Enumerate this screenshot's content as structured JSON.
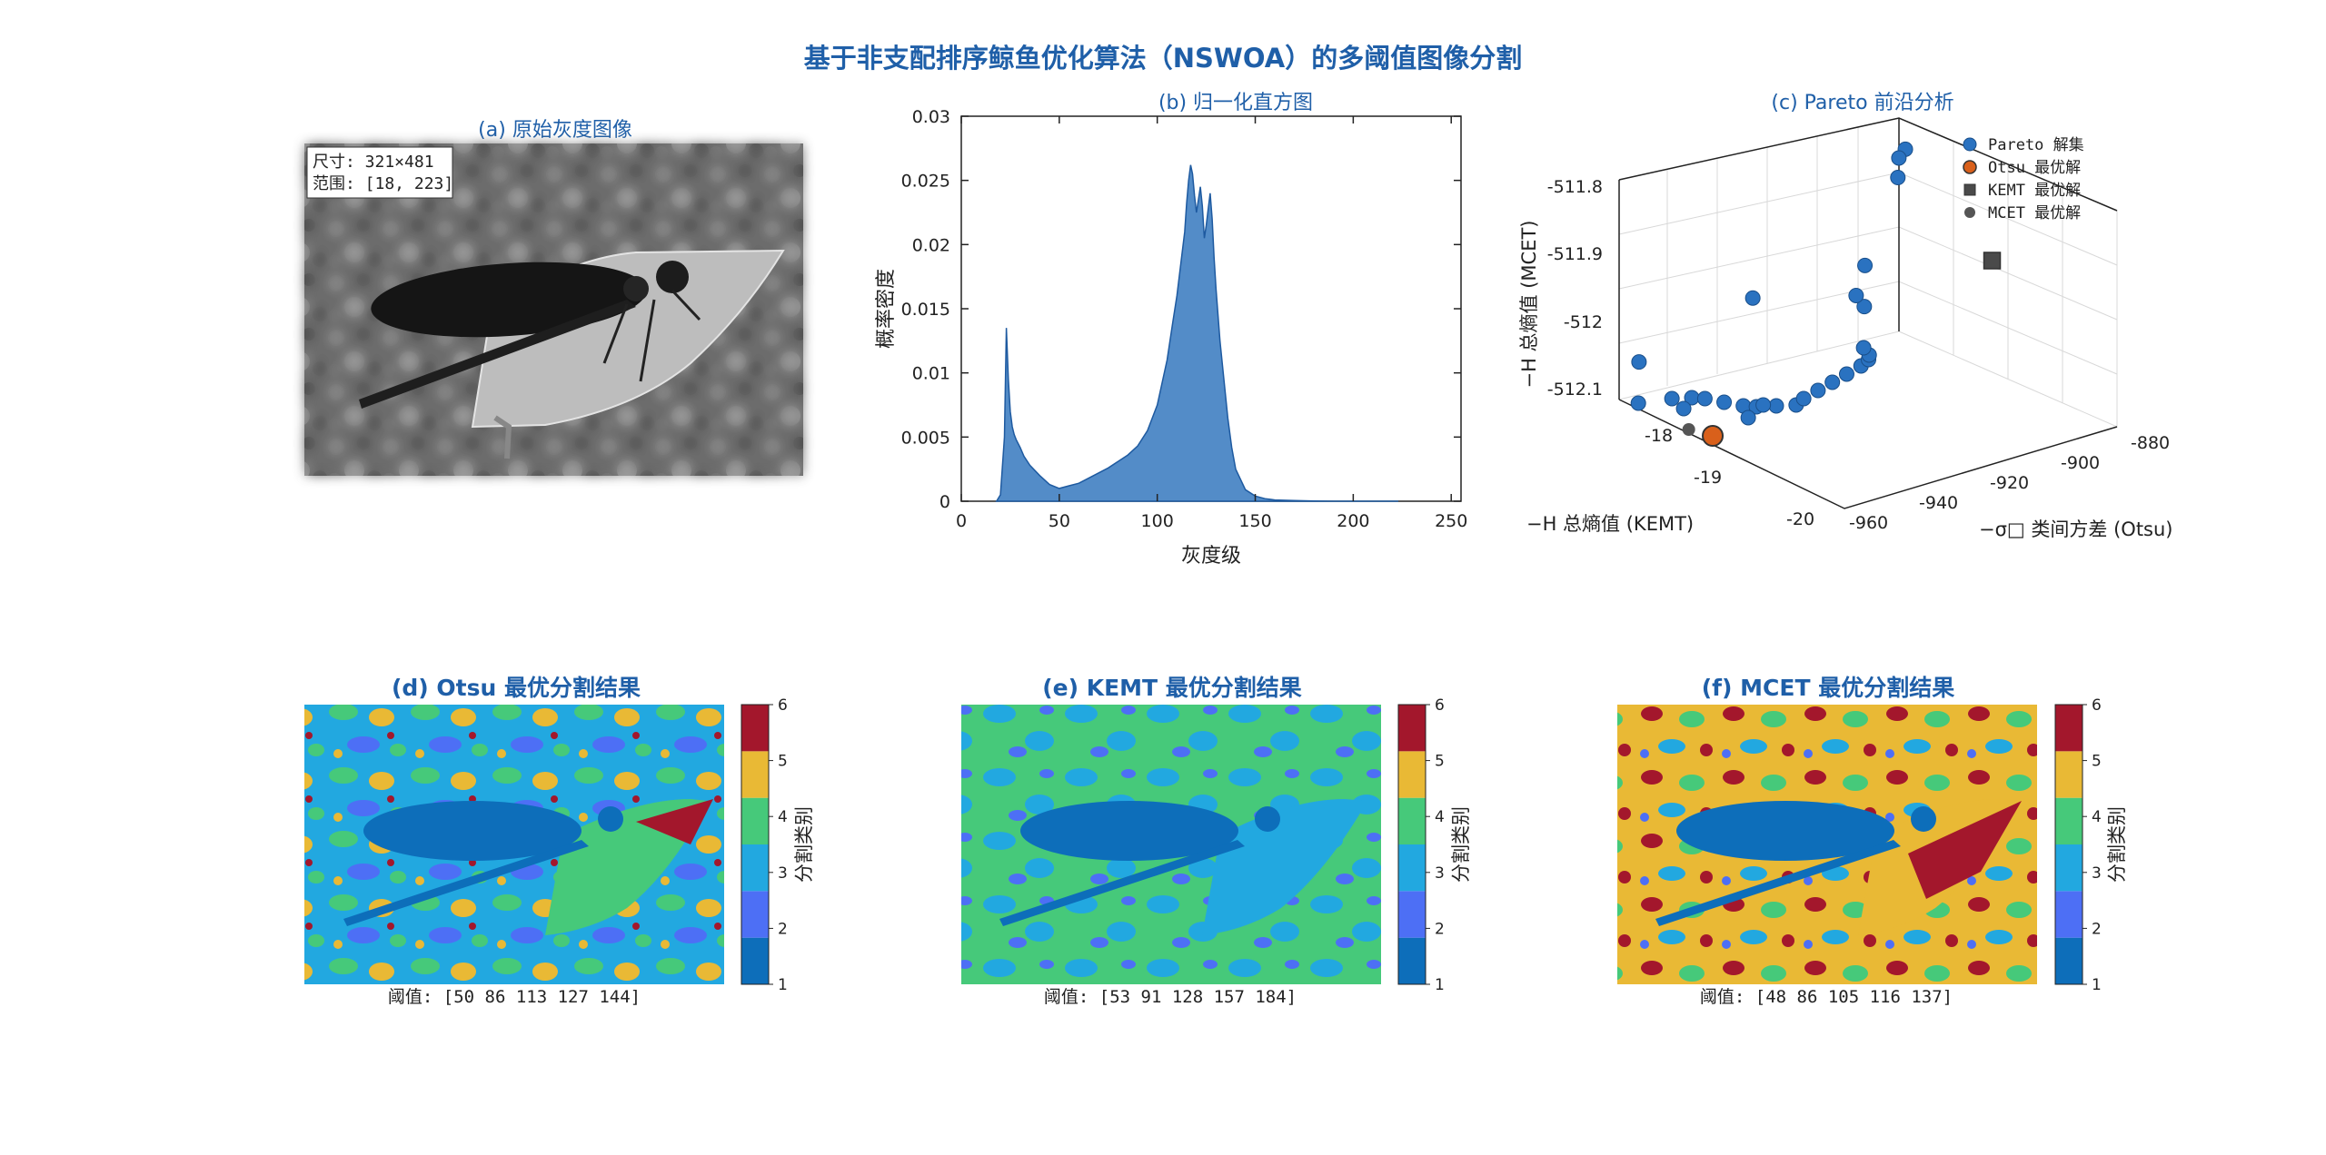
{
  "figure": {
    "title": "基于非支配排序鲸鱼优化算法（NSWOA）的多阈值图像分割"
  },
  "colors": {
    "title_blue": "#1f5fa8",
    "hist_fill": "#4a86c5",
    "pareto_point": "#2a72c0",
    "otsu_marker": "#d9601b",
    "kemt_marker": "#4a4a4a",
    "mcet_marker": "#555555",
    "classes": [
      "#0d6eba",
      "#4d6ff5",
      "#22a8e0",
      "#46c97a",
      "#e9b935",
      "#a3172c"
    ]
  },
  "panel_a": {
    "title": "(a) 原始灰度图像",
    "info_size": "尺寸: 321×481",
    "info_range": "范围: [18, 223]"
  },
  "panel_b": {
    "title": "(b) 归一化直方图",
    "xlabel": "灰度级",
    "ylabel": "概率密度"
  },
  "panel_c": {
    "title": "(c) Pareto 前沿分析",
    "xlabel": "−σ□ 类间方差 (Otsu)",
    "ylabel": "−H 总熵值 (KEMT)",
    "zlabel": "−H 总熵值 (MCET)",
    "x_ticks": [
      "-960",
      "-940",
      "-920",
      "-900",
      "-880"
    ],
    "y_ticks": [
      "-18",
      "-19",
      "-20"
    ],
    "z_ticks": [
      "-511.8",
      "-511.9",
      "-512",
      "-512.1"
    ],
    "legend": [
      "Pareto 解集",
      "Otsu 最优解",
      "KEMT 最优解",
      "MCET 最优解"
    ]
  },
  "panel_d": {
    "title": "(d) Otsu 最优分割结果",
    "caption": "阈值: [50 86 113 127 144]",
    "cbar_label": "分割类别"
  },
  "panel_e": {
    "title": "(e) KEMT 最优分割结果",
    "caption": "阈值: [53 91 128 157 184]",
    "cbar_label": "分割类别"
  },
  "panel_f": {
    "title": "(f) MCET 最优分割结果",
    "caption": "阈值: [48 86 105 116 137]",
    "cbar_label": "分割类别"
  },
  "colorbar_ticks": [
    "1",
    "2",
    "3",
    "4",
    "5",
    "6"
  ],
  "chart_data": [
    {
      "type": "area",
      "title": "(b) 归一化直方图",
      "xlabel": "灰度级",
      "ylabel": "概率密度",
      "xlim": [
        0,
        255
      ],
      "ylim": [
        0,
        0.03
      ],
      "x_ticks": [
        0,
        50,
        100,
        150,
        200,
        250
      ],
      "y_ticks": [
        0,
        0.005,
        0.01,
        0.015,
        0.02,
        0.025,
        0.03
      ],
      "x": [
        18,
        20,
        22,
        23,
        24,
        25,
        26,
        27,
        28,
        30,
        32,
        35,
        40,
        45,
        50,
        55,
        60,
        65,
        70,
        75,
        80,
        85,
        90,
        95,
        100,
        105,
        108,
        110,
        112,
        114,
        115,
        116,
        117,
        118,
        119,
        120,
        121,
        122,
        123,
        124,
        125,
        126,
        127,
        128,
        129,
        130,
        132,
        134,
        136,
        138,
        140,
        145,
        150,
        155,
        160,
        170,
        180,
        190,
        200,
        223
      ],
      "values": [
        0,
        0.0005,
        0.005,
        0.0135,
        0.0095,
        0.007,
        0.0058,
        0.0052,
        0.0048,
        0.0042,
        0.0035,
        0.0028,
        0.002,
        0.0013,
        0.001,
        0.0012,
        0.0014,
        0.0018,
        0.0022,
        0.0026,
        0.0031,
        0.0036,
        0.0043,
        0.0055,
        0.0075,
        0.011,
        0.014,
        0.016,
        0.0185,
        0.021,
        0.0232,
        0.025,
        0.0262,
        0.0255,
        0.0238,
        0.0225,
        0.0235,
        0.0245,
        0.023,
        0.0205,
        0.0215,
        0.0228,
        0.024,
        0.022,
        0.019,
        0.0165,
        0.0125,
        0.0095,
        0.0065,
        0.0042,
        0.0025,
        0.0009,
        0.0004,
        0.0002,
        0.0001,
        5e-05,
        2e-05,
        0,
        0,
        0
      ]
    },
    {
      "type": "scatter",
      "title": "(c) Pareto 前沿分析",
      "xlabel": "−σ□ 类间方差 (Otsu)",
      "ylabel": "−H 总熵值 (KEMT)",
      "zlabel": "−H 总熵值 (MCET)",
      "xlim": [
        -960,
        -880
      ],
      "ylim": [
        -20,
        -18
      ],
      "zlim": [
        -512.1,
        -511.8
      ],
      "series": [
        {
          "name": "Pareto 解集",
          "points": [
            [
              -958,
              -18.2,
              -512.1
            ],
            [
              -950,
              -18.3,
              -512.1
            ],
            [
              -946,
              -18.4,
              -512.1
            ],
            [
              -944,
              -18.5,
              -512.1
            ],
            [
              -942,
              -18.7,
              -512.1
            ],
            [
              -940,
              -18.9,
              -512.1
            ],
            [
              -938,
              -19.0,
              -512.1
            ],
            [
              -934,
              -19.1,
              -512.1
            ],
            [
              -930,
              -19.2,
              -512.1
            ],
            [
              -926,
              -19.1,
              -512.1
            ],
            [
              -920,
              -19.0,
              -512.1
            ],
            [
              -914,
              -18.9,
              -512.1
            ],
            [
              -908,
              -18.8,
              -512.1
            ],
            [
              -902,
              -18.7,
              -512.1
            ],
            [
              -898,
              -18.6,
              -512.1
            ],
            [
              -896,
              -18.5,
              -512.1
            ],
            [
              -894,
              -18.3,
              -512.1
            ],
            [
              -892,
              -18.2,
              -512.05
            ],
            [
              -890,
              -18.1,
              -512.0
            ],
            [
              -956,
              -18.1,
              -512.05
            ],
            [
              -930,
              -18.5,
              -511.98
            ],
            [
              -898,
              -18.4,
              -512.02
            ],
            [
              -884,
              -18.3,
              -511.88
            ],
            [
              -880,
              -18.2,
              -511.85
            ],
            [
              -900,
              -19.2,
              -511.8
            ],
            [
              -936,
              -19.0,
              -512.1
            ],
            [
              -944,
              -19.2,
              -512.1
            ],
            [
              -952,
              -18.6,
              -512.1
            ]
          ]
        },
        {
          "name": "Otsu 最优解",
          "points": [
            [
              -958,
              -19.4,
              -512.1
            ]
          ]
        },
        {
          "name": "KEMT 最优解",
          "points": [
            [
              -880,
              -19.6,
              -511.95
            ]
          ]
        },
        {
          "name": "MCET 最优解",
          "points": [
            [
              -960,
              -19.3,
              -512.1
            ]
          ]
        }
      ]
    }
  ]
}
